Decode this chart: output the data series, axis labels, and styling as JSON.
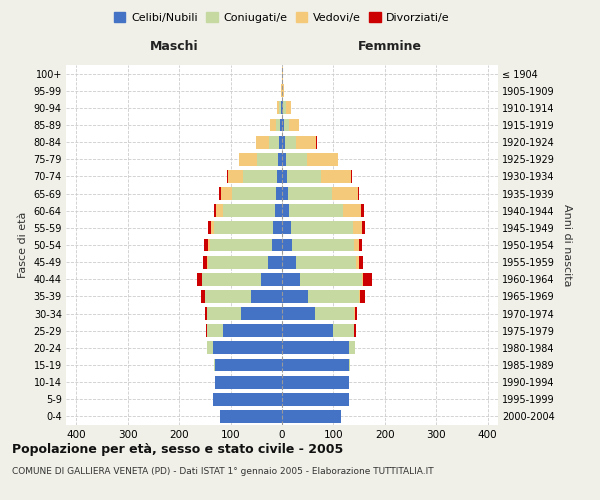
{
  "age_groups": [
    "0-4",
    "5-9",
    "10-14",
    "15-19",
    "20-24",
    "25-29",
    "30-34",
    "35-39",
    "40-44",
    "45-49",
    "50-54",
    "55-59",
    "60-64",
    "65-69",
    "70-74",
    "75-79",
    "80-84",
    "85-89",
    "90-94",
    "95-99",
    "100+"
  ],
  "birth_years": [
    "2000-2004",
    "1995-1999",
    "1990-1994",
    "1985-1989",
    "1980-1984",
    "1975-1979",
    "1970-1974",
    "1965-1969",
    "1960-1964",
    "1955-1959",
    "1950-1954",
    "1945-1949",
    "1940-1944",
    "1935-1939",
    "1930-1934",
    "1925-1929",
    "1920-1924",
    "1915-1919",
    "1910-1914",
    "1905-1909",
    "≤ 1904"
  ],
  "colors": {
    "celibi": "#4472c4",
    "coniugati": "#c5d9a0",
    "vedovi": "#f5c97a",
    "divorziati": "#cc0000"
  },
  "males": {
    "celibi": [
      120,
      135,
      130,
      130,
      135,
      115,
      80,
      60,
      40,
      28,
      20,
      17,
      14,
      12,
      10,
      8,
      5,
      3,
      2,
      0,
      0
    ],
    "coniugati": [
      0,
      0,
      0,
      2,
      10,
      30,
      65,
      90,
      115,
      115,
      120,
      115,
      100,
      85,
      65,
      40,
      20,
      8,
      3,
      0,
      0
    ],
    "vedovi": [
      0,
      0,
      0,
      0,
      0,
      0,
      0,
      0,
      1,
      2,
      3,
      6,
      14,
      22,
      30,
      35,
      25,
      12,
      5,
      2,
      0
    ],
    "divorziati": [
      0,
      0,
      0,
      0,
      0,
      3,
      5,
      8,
      10,
      8,
      8,
      5,
      5,
      4,
      2,
      0,
      0,
      0,
      0,
      0,
      0
    ]
  },
  "females": {
    "nubili": [
      115,
      130,
      130,
      130,
      130,
      100,
      65,
      50,
      35,
      28,
      20,
      18,
      14,
      12,
      10,
      8,
      5,
      4,
      2,
      0,
      0
    ],
    "coniugate": [
      0,
      0,
      0,
      2,
      12,
      40,
      75,
      100,
      120,
      115,
      120,
      120,
      105,
      85,
      65,
      40,
      22,
      10,
      5,
      0,
      0
    ],
    "vedove": [
      0,
      0,
      0,
      0,
      0,
      0,
      1,
      2,
      2,
      6,
      10,
      18,
      35,
      50,
      60,
      60,
      40,
      20,
      10,
      3,
      1
    ],
    "divorziate": [
      0,
      0,
      0,
      0,
      0,
      3,
      5,
      10,
      18,
      8,
      5,
      5,
      5,
      3,
      2,
      1,
      1,
      0,
      0,
      0,
      0
    ]
  },
  "xlim": 420,
  "bar_height": 0.75,
  "title": "Popolazione per età, sesso e stato civile - 2005",
  "subtitle": "COMUNE DI GALLIERA VENETA (PD) - Dati ISTAT 1° gennaio 2005 - Elaborazione TUTTITALIA.IT",
  "xlabel_left": "Maschi",
  "xlabel_right": "Femmine",
  "ylabel_left": "Fasce di età",
  "ylabel_right": "Anni di nascita",
  "bg_color": "#f0f0e8",
  "plot_bg": "#ffffff",
  "legend_labels": [
    "Celibi/Nubili",
    "Coniugati/e",
    "Vedovi/e",
    "Divorziati/e"
  ]
}
